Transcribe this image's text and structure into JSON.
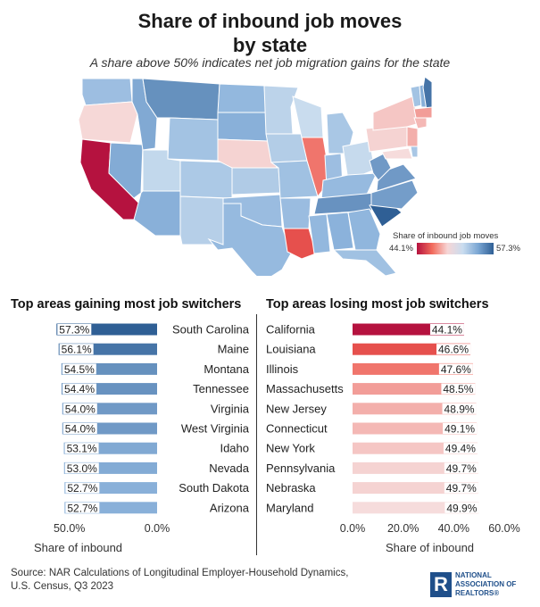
{
  "title_line1": "Share of inbound job moves",
  "title_line2": "by state",
  "subtitle": "A share above 50% indicates net job migration gains for the state",
  "legend": {
    "title": "Share of inbound job moves",
    "min_label": "44.1%",
    "max_label": "57.3%"
  },
  "colors": {
    "gain_dark": "#2f5f95",
    "gain_mid": "#5b8cc2",
    "gain_light": "#93badf",
    "lose_dark": "#b5123f",
    "lose_mid": "#ee5a4f",
    "lose_light": "#f4b8b2"
  },
  "map_states": [
    {
      "code": "WA",
      "value": 52.0
    },
    {
      "code": "OR",
      "value": 49.8
    },
    {
      "code": "CA",
      "value": 44.1
    },
    {
      "code": "NV",
      "value": 53.0
    },
    {
      "code": "ID",
      "value": 53.1
    },
    {
      "code": "MT",
      "value": 54.5
    },
    {
      "code": "WY",
      "value": 51.8
    },
    {
      "code": "UT",
      "value": 50.8
    },
    {
      "code": "AZ",
      "value": 52.7
    },
    {
      "code": "CO",
      "value": 51.5
    },
    {
      "code": "NM",
      "value": 51.2
    },
    {
      "code": "ND",
      "value": 52.3
    },
    {
      "code": "SD",
      "value": 52.7
    },
    {
      "code": "NE",
      "value": 49.7
    },
    {
      "code": "KS",
      "value": 51.4
    },
    {
      "code": "OK",
      "value": 52.1
    },
    {
      "code": "TX",
      "value": 52.2
    },
    {
      "code": "MN",
      "value": 51.0
    },
    {
      "code": "IA",
      "value": 51.3
    },
    {
      "code": "MO",
      "value": 51.9
    },
    {
      "code": "AR",
      "value": 52.1
    },
    {
      "code": "LA",
      "value": 46.6
    },
    {
      "code": "WI",
      "value": 50.6
    },
    {
      "code": "IL",
      "value": 47.6
    },
    {
      "code": "MI",
      "value": 51.6
    },
    {
      "code": "IN",
      "value": 52.0
    },
    {
      "code": "OH",
      "value": 50.7
    },
    {
      "code": "KY",
      "value": 52.2
    },
    {
      "code": "TN",
      "value": 54.4
    },
    {
      "code": "MS",
      "value": 52.3
    },
    {
      "code": "AL",
      "value": 52.6
    },
    {
      "code": "GA",
      "value": 52.4
    },
    {
      "code": "FL",
      "value": 51.9
    },
    {
      "code": "SC",
      "value": 57.3
    },
    {
      "code": "NC",
      "value": 53.8
    },
    {
      "code": "VA",
      "value": 54.0
    },
    {
      "code": "WV",
      "value": 54.0
    },
    {
      "code": "PA",
      "value": 49.7
    },
    {
      "code": "NY",
      "value": 49.4
    },
    {
      "code": "VT",
      "value": 51.8
    },
    {
      "code": "NH",
      "value": 52.8
    },
    {
      "code": "ME",
      "value": 56.1
    },
    {
      "code": "MA",
      "value": 48.5
    },
    {
      "code": "CT",
      "value": 49.1
    },
    {
      "code": "NJ",
      "value": 48.9
    },
    {
      "code": "MD",
      "value": 49.9
    },
    {
      "code": "DE",
      "value": 51.6
    }
  ],
  "chart_data": [
    {
      "type": "bar",
      "title": "Top areas gaining most job switchers",
      "categories": [
        "South Carolina",
        "Maine",
        "Montana",
        "Tennessee",
        "Virginia",
        "West Virginia",
        "Idaho",
        "Nevada",
        "South Dakota",
        "Arizona"
      ],
      "values": [
        57.3,
        56.1,
        54.5,
        54.4,
        54.0,
        54.0,
        53.1,
        53.0,
        52.7,
        52.7
      ],
      "value_labels": [
        "57.3%",
        "56.1%",
        "54.5%",
        "54.4%",
        "54.0%",
        "54.0%",
        "53.1%",
        "53.0%",
        "52.7%",
        "52.7%"
      ],
      "orientation": "horizontal",
      "direction": "reversed",
      "xlim": [
        0,
        60
      ],
      "x_ticks": [
        "50.0%",
        "0.0%"
      ],
      "xlabel": "Share of inbound"
    },
    {
      "type": "bar",
      "title": "Top areas losing most job switchers",
      "categories": [
        "California",
        "Louisiana",
        "Illinois",
        "Massachusetts",
        "New Jersey",
        "Connecticut",
        "New York",
        "Pennsylvania",
        "Nebraska",
        "Maryland"
      ],
      "values": [
        44.1,
        46.6,
        47.6,
        48.5,
        48.9,
        49.1,
        49.4,
        49.7,
        49.7,
        49.9
      ],
      "value_labels": [
        "44.1%",
        "46.6%",
        "47.6%",
        "48.5%",
        "48.9%",
        "49.1%",
        "49.4%",
        "49.7%",
        "49.7%",
        "49.9%"
      ],
      "orientation": "horizontal",
      "xlim": [
        0,
        60
      ],
      "x_ticks": [
        "0.0%",
        "20.0%",
        "40.0%",
        "60.0%"
      ],
      "xlabel": "Share of inbound"
    }
  ],
  "source_line1": "Source: NAR Calculations of Longitudinal Employer-Household Dynamics,",
  "source_line2": "U.S. Census, Q3 2023",
  "logo": {
    "mark": "R",
    "line1": "NATIONAL",
    "line2": "ASSOCIATION OF",
    "line3": "REALTORS®"
  }
}
